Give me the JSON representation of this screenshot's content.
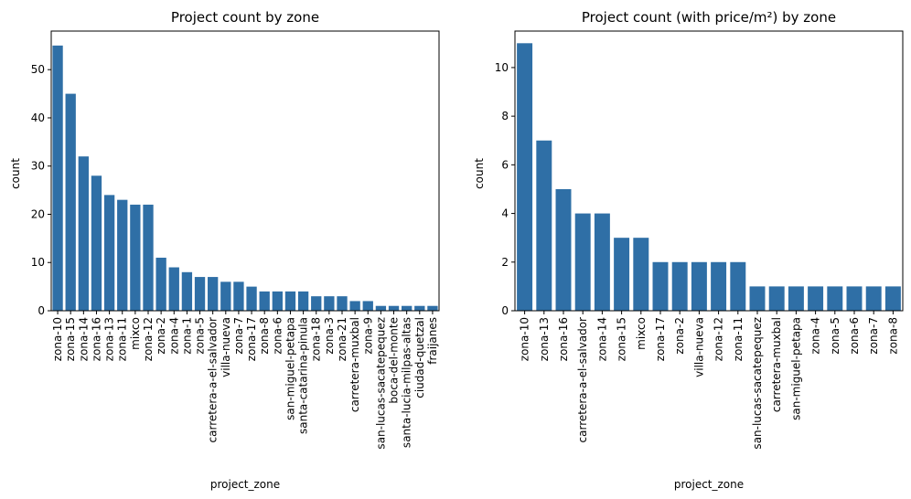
{
  "chart_data": [
    {
      "type": "bar",
      "title": "Project count by zone",
      "xlabel": "project_zone",
      "ylabel": "count",
      "ylim": [
        0,
        58
      ],
      "yticks": [
        0,
        10,
        20,
        30,
        40,
        50
      ],
      "grid": false,
      "bar_color": "#2f6fa6",
      "categories": [
        "zona-10",
        "zona-15",
        "zona-14",
        "zona-16",
        "zona-13",
        "zona-11",
        "mixco",
        "zona-12",
        "zona-2",
        "zona-4",
        "zona-1",
        "zona-5",
        "carretera-a-el-salvador",
        "villa-nueva",
        "zona-7",
        "zona-17",
        "zona-8",
        "zona-6",
        "san-miguel-petapa",
        "santa-catarina-pinula",
        "zona-18",
        "zona-3",
        "zona-21",
        "carretera-muxbal",
        "zona-9",
        "san-lucas-sacatepequez",
        "boca-del-monte",
        "santa-lucia-milpas-altas",
        "ciudad-quetzal",
        "fraijanes"
      ],
      "values": [
        55,
        45,
        32,
        28,
        24,
        23,
        22,
        22,
        11,
        9,
        8,
        7,
        7,
        6,
        6,
        5,
        4,
        4,
        4,
        4,
        3,
        3,
        3,
        2,
        2,
        1,
        1,
        1,
        1,
        1
      ]
    },
    {
      "type": "bar",
      "title": "Project count (with price/m²) by zone",
      "xlabel": "project_zone",
      "ylabel": "count",
      "ylim": [
        0,
        11.5
      ],
      "yticks": [
        0,
        2,
        4,
        6,
        8,
        10
      ],
      "grid": false,
      "bar_color": "#2f6fa6",
      "categories": [
        "zona-10",
        "zona-13",
        "zona-16",
        "carretera-a-el-salvador",
        "zona-14",
        "zona-15",
        "mixco",
        "zona-17",
        "zona-2",
        "villa-nueva",
        "zona-12",
        "zona-11",
        "san-lucas-sacatepequez",
        "carretera-muxbal",
        "san-miguel-petapa",
        "zona-4",
        "zona-5",
        "zona-6",
        "zona-7",
        "zona-8"
      ],
      "values": [
        11,
        7,
        5,
        4,
        4,
        3,
        3,
        2,
        2,
        2,
        2,
        2,
        1,
        1,
        1,
        1,
        1,
        1,
        1,
        1
      ]
    }
  ]
}
